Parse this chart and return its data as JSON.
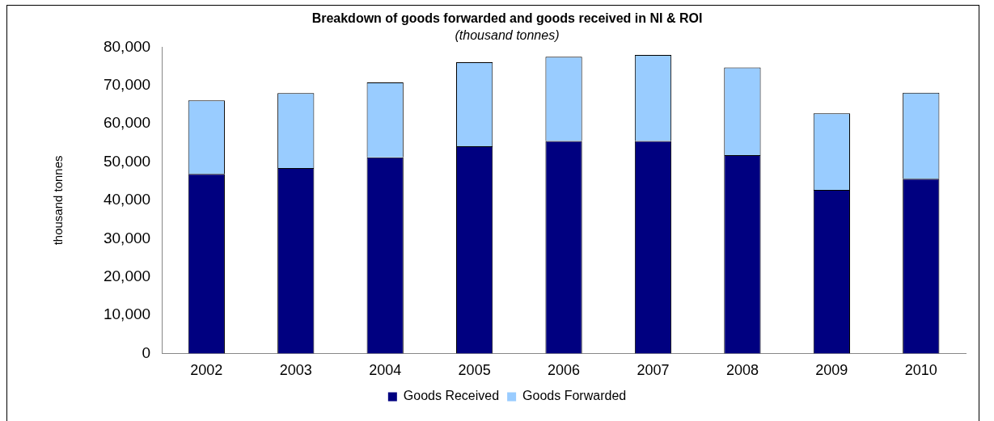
{
  "chart_data": {
    "type": "bar",
    "title": "Breakdown of goods forwarded and goods received in NI & ROI",
    "subtitle": "(thousand tonnes)",
    "ylabel": "thousand tonnes",
    "categories": [
      "2002",
      "2003",
      "2004",
      "2005",
      "2006",
      "2007",
      "2008",
      "2009",
      "2010"
    ],
    "series": [
      {
        "name": "Goods Received",
        "color": "#000080",
        "values": [
          46900,
          48400,
          51200,
          54100,
          55500,
          55500,
          51800,
          42700,
          45600
        ]
      },
      {
        "name": "Goods Forwarded",
        "color": "#99ccff",
        "values": [
          19200,
          19600,
          19600,
          22000,
          22000,
          22500,
          22900,
          20000,
          22500
        ]
      }
    ],
    "stacked": true,
    "ylim": [
      0,
      80000
    ],
    "yticks": [
      0,
      {
        "value": 10000,
        "label": "10,000"
      },
      {
        "value": 20000,
        "label": "20,000"
      },
      {
        "value": 30000,
        "label": "30,000"
      },
      {
        "value": 40000,
        "label": "40,000"
      },
      {
        "value": 50000,
        "label": "50,000"
      },
      {
        "value": 60000,
        "label": "60,000"
      },
      {
        "value": 70000,
        "label": "70,000"
      },
      {
        "value": 80000,
        "label": "80,000"
      }
    ],
    "grid": false,
    "legend": "bottom"
  }
}
